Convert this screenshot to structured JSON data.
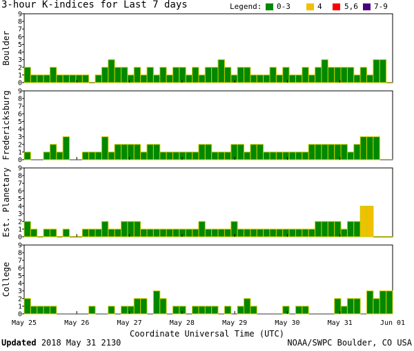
{
  "title": "3-hour K-indices for Last 7 days",
  "legend": {
    "title": "Legend:",
    "items": [
      {
        "label": "0-3",
        "color": "#008800"
      },
      {
        "label": "4",
        "color": "#f2c000"
      },
      {
        "label": "5,6",
        "color": "#ff0000"
      },
      {
        "label": "7-9",
        "color": "#4b0082"
      }
    ]
  },
  "footer": {
    "updated_label": "Updated",
    "updated_value": "2018 May 31 2130",
    "credit": "NOAA/SWPC Boulder, CO USA"
  },
  "chart_data": {
    "type": "bar",
    "xlabel": "Coordinate Universal Time (UTC)",
    "x_ticks": [
      "May 25",
      "May 26",
      "May 27",
      "May 28",
      "May 29",
      "May 30",
      "May 31",
      "Jun 01"
    ],
    "y_ticks": [
      "0",
      "1",
      "2",
      "3",
      "4",
      "5",
      "6",
      "7",
      "8",
      "9"
    ],
    "ylim": [
      0,
      9
    ],
    "bar_outline_color": "#cccc00",
    "series": [
      {
        "name": "Boulder",
        "values": [
          2,
          1,
          1,
          1,
          2,
          1,
          1,
          1,
          1,
          1,
          0,
          1,
          2,
          3,
          2,
          2,
          1,
          2,
          1,
          2,
          1,
          2,
          1,
          2,
          2,
          1,
          2,
          1,
          2,
          2,
          3,
          2,
          1,
          2,
          2,
          1,
          1,
          1,
          2,
          1,
          2,
          1,
          1,
          2,
          1,
          2,
          3,
          2,
          2,
          2,
          2,
          1,
          2,
          1,
          3,
          3,
          0
        ]
      },
      {
        "name": "Fredericksburg",
        "values": [
          1,
          0,
          0,
          1,
          2,
          1,
          3,
          0,
          0,
          1,
          1,
          1,
          3,
          1,
          2,
          2,
          2,
          2,
          1,
          2,
          2,
          1,
          1,
          1,
          1,
          1,
          1,
          2,
          2,
          1,
          1,
          1,
          2,
          2,
          1,
          2,
          2,
          1,
          1,
          1,
          1,
          1,
          1,
          1,
          2,
          2,
          2,
          2,
          2,
          2,
          1,
          2,
          3,
          3,
          3,
          0,
          0
        ]
      },
      {
        "name": "Est. Planetary",
        "values": [
          2,
          1,
          0,
          1,
          1,
          0,
          1,
          0,
          0,
          1,
          1,
          1,
          2,
          1,
          1,
          2,
          2,
          2,
          1,
          1,
          1,
          1,
          1,
          1,
          1,
          1,
          1,
          2,
          1,
          1,
          1,
          1,
          2,
          1,
          1,
          1,
          1,
          1,
          1,
          1,
          1,
          1,
          1,
          1,
          1,
          2,
          2,
          2,
          2,
          1,
          2,
          2,
          4,
          4,
          0,
          0,
          0
        ]
      },
      {
        "name": "College",
        "values": [
          2,
          1,
          1,
          1,
          1,
          0,
          0,
          0,
          0,
          0,
          1,
          0,
          0,
          1,
          0,
          1,
          1,
          2,
          2,
          0,
          3,
          2,
          0,
          1,
          1,
          0,
          1,
          1,
          1,
          1,
          0,
          1,
          0,
          1,
          2,
          1,
          0,
          0,
          0,
          0,
          1,
          0,
          1,
          1,
          0,
          0,
          0,
          0,
          2,
          1,
          2,
          2,
          0,
          3,
          2,
          3,
          3
        ]
      }
    ]
  }
}
